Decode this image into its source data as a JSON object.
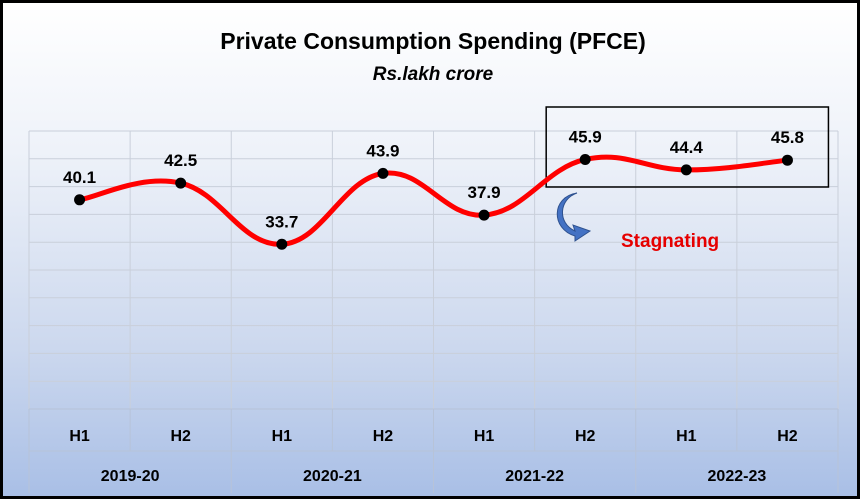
{
  "chart_data": {
    "type": "line",
    "title": "Private Consumption Spending (PFCE)",
    "subtitle": "Rs.lakh crore",
    "categories": [
      "H1",
      "H2",
      "H1",
      "H2",
      "H1",
      "H2",
      "H1",
      "H2"
    ],
    "groups": [
      {
        "label": "2019-20",
        "span": 2
      },
      {
        "label": "2020-21",
        "span": 2
      },
      {
        "label": "2021-22",
        "span": 2
      },
      {
        "label": "2022-23",
        "span": 2
      }
    ],
    "series": [
      {
        "values": [
          40.1,
          42.5,
          33.7,
          43.9,
          37.9,
          45.9,
          44.4,
          45.8
        ],
        "color": "#ff0000"
      }
    ],
    "data_labels": [
      "40.1",
      "42.5",
      "33.7",
      "43.9",
      "37.9",
      "45.9",
      "44.4",
      "45.8"
    ],
    "ylim": [
      10,
      50
    ],
    "grid": true,
    "marker_color": "#000000",
    "annotation": {
      "text": "Stagnating",
      "color": "#e60000",
      "arrow_icon": "curved-arrow-icon",
      "arrow_color": "#4472c4",
      "highlight_from_index": 5,
      "highlight_to_index": 7
    }
  }
}
